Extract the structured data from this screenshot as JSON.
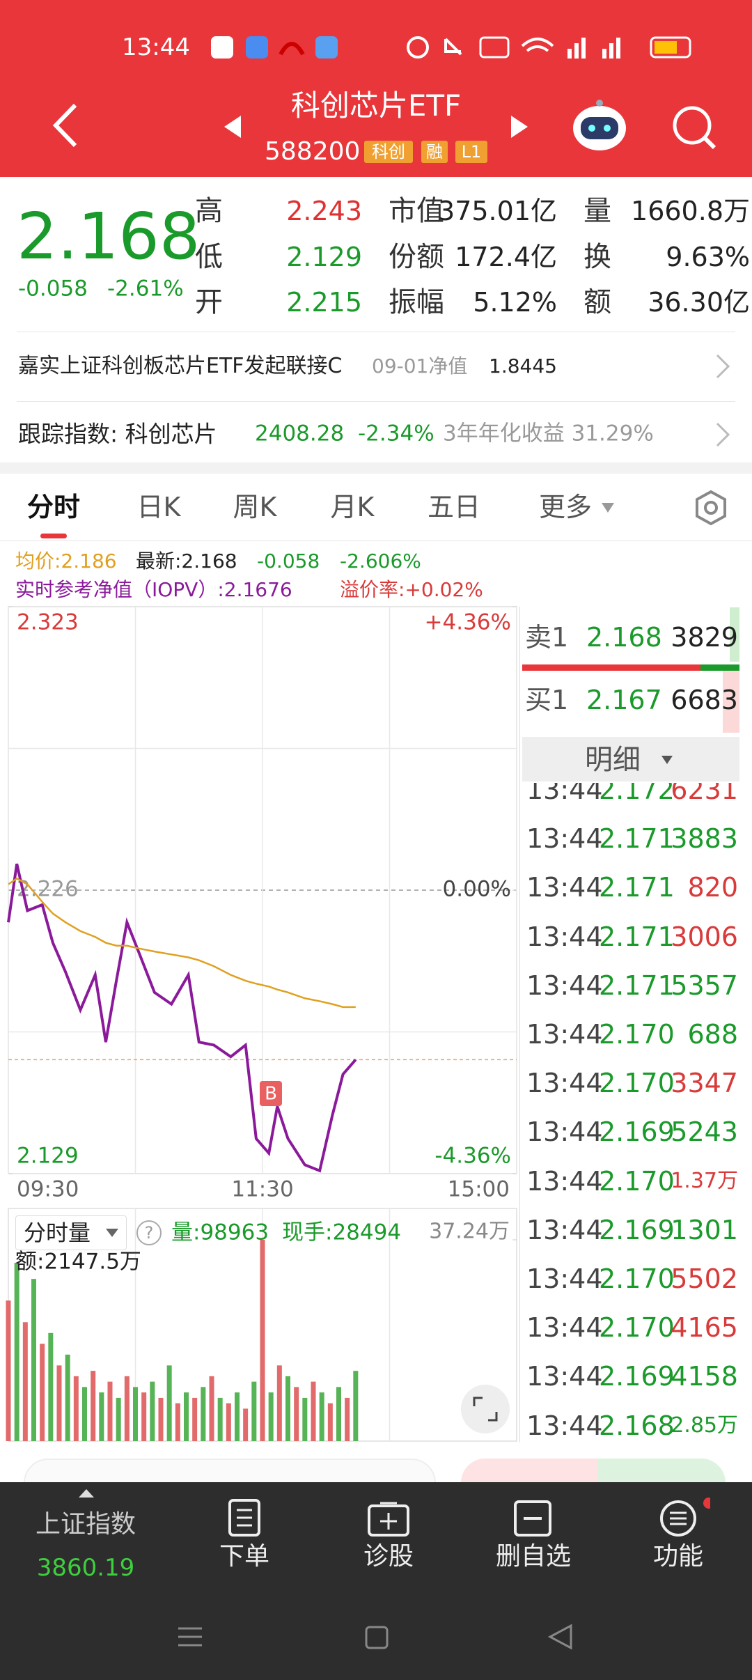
{
  "status_bar": {
    "time": "13:44"
  },
  "header": {
    "title": "科创芯片ETF",
    "code": "588200",
    "tags": [
      "科创",
      "融",
      "L1"
    ]
  },
  "quote": {
    "price": "2.168",
    "change": "-0.058",
    "change_pct": "-2.61%",
    "stats": [
      [
        "高",
        "2.243",
        "市值",
        "375.01亿",
        "量",
        "1660.8万"
      ],
      [
        "低",
        "2.129",
        "份额",
        "172.4亿",
        "换",
        "9.63%"
      ],
      [
        "开",
        "2.215",
        "振幅",
        "5.12%",
        "额",
        "36.30亿"
      ]
    ]
  },
  "fund_link": {
    "name": "嘉实上证科创板芯片ETF发起联接C",
    "nav_label": "09-01净值",
    "nav": "1.8445"
  },
  "tracking": {
    "label": "跟踪指数: 科创芯片",
    "value": "2408.28",
    "change": "-2.34%",
    "return_label": "3年年化收益 31.29%"
  },
  "tabs": [
    "分时",
    "日K",
    "周K",
    "月K",
    "五日",
    "更多"
  ],
  "indicators": {
    "avg": "均价:2.186",
    "latest": "最新:2.168",
    "change": "-0.058",
    "change_pct": "-2.606%",
    "iopv": "实时参考净值（IOPV）:2.1676",
    "premium": "溢价率:+0.02%"
  },
  "chart_data": [
    {
      "type": "line",
      "x": [
        "09:30",
        "09:34",
        "09:39",
        "09:46",
        "09:51",
        "09:57",
        "10:04",
        "10:11",
        "10:16",
        "10:21",
        "10:26",
        "10:32",
        "10:39",
        "10:47",
        "10:55",
        "11:00",
        "11:07",
        "11:15",
        "11:22",
        "11:27",
        "13:03",
        "13:07",
        "13:12",
        "13:20",
        "13:27",
        "13:33",
        "13:38",
        "13:44"
      ],
      "series": [
        {
          "color": "#8b1a9b",
          "values": [
            2.215,
            2.235,
            2.219,
            2.221,
            2.208,
            2.198,
            2.185,
            2.197,
            2.174,
            2.195,
            2.215,
            2.204,
            2.191,
            2.187,
            2.197,
            2.174,
            2.173,
            2.169,
            2.173,
            2.141,
            2.136,
            2.152,
            2.141,
            2.132,
            2.13,
            2.149,
            2.163,
            2.168
          ]
        },
        {
          "color": "#e0a020",
          "values": [
            2.228,
            2.23,
            2.228,
            2.222,
            2.218,
            2.215,
            2.212,
            2.21,
            2.208,
            2.207,
            2.207,
            2.206,
            2.205,
            2.204,
            2.203,
            2.202,
            2.2,
            2.197,
            2.195,
            2.194,
            2.193,
            2.192,
            2.191,
            2.189,
            2.188,
            2.187,
            2.186,
            2.186
          ]
        }
      ],
      "xlim": [
        "09:30",
        "15:00"
      ],
      "xticks": [
        "09:30",
        "11:30",
        "15:00"
      ],
      "ylim": [
        2.129,
        2.323
      ],
      "yticks": [
        2.129,
        2.226,
        2.323
      ],
      "y2lim": [
        -4.36,
        4.36
      ],
      "y2ticks": [
        {
          "value": -4.36,
          "label": "-4.36%"
        },
        {
          "value": 0,
          "label": "0.00%"
        },
        {
          "value": 4.36,
          "label": "+4.36%"
        }
      ]
    },
    {
      "type": "bar",
      "x": [
        "09:30",
        "09:34",
        "09:38",
        "09:42",
        "09:46",
        "09:50",
        "09:54",
        "09:58",
        "10:02",
        "10:06",
        "10:10",
        "10:14",
        "10:18",
        "10:22",
        "10:26",
        "10:30",
        "10:34",
        "10:38",
        "10:42",
        "10:46",
        "10:50",
        "10:54",
        "10:58",
        "11:02",
        "11:06",
        "11:10",
        "11:14",
        "11:18",
        "11:22",
        "11:26",
        "13:00",
        "13:04",
        "13:08",
        "13:12",
        "13:16",
        "13:20",
        "13:24",
        "13:28",
        "13:32",
        "13:36",
        "13:40",
        "13:44"
      ],
      "values": [
        26,
        33,
        22,
        30,
        18,
        20,
        14,
        16,
        12,
        10,
        13,
        9,
        11,
        8,
        12,
        10,
        9,
        11,
        8,
        14,
        7,
        9,
        8,
        10,
        12,
        8,
        7,
        9,
        6,
        11,
        37.24,
        9,
        14,
        12,
        10,
        8,
        11,
        9,
        7,
        10,
        8,
        13
      ],
      "colors": [
        "#e26a6a",
        "#56b356"
      ],
      "xlim": [
        "09:30",
        "15:00"
      ],
      "ylim": [
        0,
        37.24
      ],
      "yticks": [
        {
          "value": 37.24,
          "label": "37.24万"
        }
      ]
    }
  ],
  "volume_panel": {
    "title": "分时量",
    "help": "?",
    "volume": "量:98963",
    "current": "现手:28494",
    "amount": "额:2147.5万"
  },
  "order_book": {
    "sell": {
      "label": "卖1",
      "price": "2.168",
      "volume": "3829"
    },
    "buy": {
      "label": "买1",
      "price": "2.167",
      "volume": "6683"
    },
    "detail": "明细"
  },
  "trades": [
    {
      "time": "13:44",
      "price": "2.172",
      "volume": "6231",
      "color": "#d93a3a"
    },
    {
      "time": "13:44",
      "price": "2.171",
      "volume": "3883",
      "color": "#1a9a2a"
    },
    {
      "time": "13:44",
      "price": "2.171",
      "volume": "820",
      "color": "#d93a3a"
    },
    {
      "time": "13:44",
      "price": "2.171",
      "volume": "3006",
      "color": "#d93a3a"
    },
    {
      "time": "13:44",
      "price": "2.171",
      "volume": "5357",
      "color": "#1a9a2a"
    },
    {
      "time": "13:44",
      "price": "2.170",
      "volume": "688",
      "color": "#1a9a2a"
    },
    {
      "time": "13:44",
      "price": "2.170",
      "volume": "3347",
      "color": "#d93a3a"
    },
    {
      "time": "13:44",
      "price": "2.169",
      "volume": "5243",
      "color": "#1a9a2a"
    },
    {
      "time": "13:44",
      "price": "2.170",
      "volume": "1.37万",
      "color": "#d93a3a"
    },
    {
      "time": "13:44",
      "price": "2.169",
      "volume": "1301",
      "color": "#1a9a2a"
    },
    {
      "time": "13:44",
      "price": "2.170",
      "volume": "5502",
      "color": "#d93a3a"
    },
    {
      "time": "13:44",
      "price": "2.170",
      "volume": "4165",
      "color": "#d93a3a"
    },
    {
      "time": "13:44",
      "price": "2.169",
      "volume": "4158",
      "color": "#1a9a2a"
    },
    {
      "time": "13:44",
      "price": "2.168",
      "volume": "2.85万",
      "color": "#1a9a2a"
    }
  ],
  "bottom_nav": {
    "index_name": "上证指数",
    "index_value": "3860.19",
    "items": [
      "下单",
      "诊股",
      "删自选",
      "功能"
    ]
  }
}
